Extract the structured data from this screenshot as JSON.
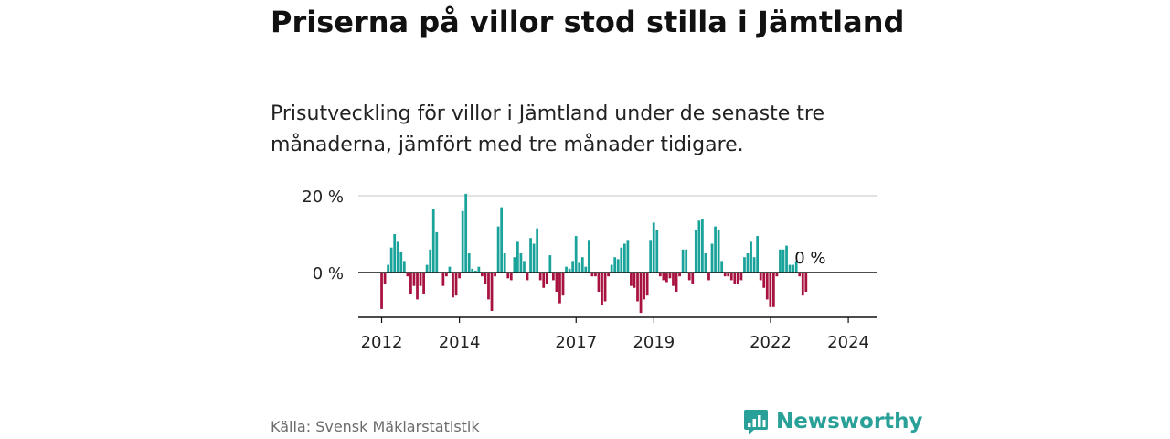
{
  "title": "Priserna på villor stod stilla i Jämtland",
  "subtitle": "Prisutveckling för villor i Jämtland under de senaste tre månaderna, jämfört med tre månader tidigare.",
  "source": "Källa: Svensk Mäklarstatistik",
  "brand": {
    "name": "Newsworthy",
    "icon": "newsworthy-logo-icon"
  },
  "colors": {
    "positive": "#1aa39a",
    "negative": "#a8123f",
    "brand": "#2aa198",
    "grid": "#d9d9d9",
    "axis": "#111111"
  },
  "chart_data": {
    "type": "bar",
    "title": "Priserna på villor stod stilla i Jämtland",
    "xlabel": "",
    "ylabel": "",
    "ylim": [
      -12,
      20
    ],
    "x_range": [
      2011.4,
      2024.75
    ],
    "yticks": [
      {
        "value": 20,
        "label": "20 %"
      },
      {
        "value": 0,
        "label": "0 %"
      }
    ],
    "xticks": [
      {
        "value": 2012,
        "label": "2012"
      },
      {
        "value": 2014,
        "label": "2014"
      },
      {
        "value": 2017,
        "label": "2017"
      },
      {
        "value": 2019,
        "label": "2019"
      },
      {
        "value": 2022,
        "label": "2022"
      },
      {
        "value": 2024,
        "label": "2024"
      }
    ],
    "last_label": "0 %",
    "series": [
      {
        "name": "Prisutveckling",
        "start": 2012,
        "step": 0.0833,
        "values": [
          -9.5,
          -3,
          2,
          6.5,
          10,
          8,
          5.5,
          3,
          -1,
          -5.5,
          -3.5,
          -7,
          -3.5,
          -5.5,
          2,
          6,
          16.5,
          10.5,
          0,
          -3.5,
          -1,
          1.5,
          -6.5,
          -6,
          -1.5,
          16,
          20.5,
          5,
          1,
          0.5,
          1.5,
          -1,
          -3,
          -7,
          -10,
          -1,
          12,
          17,
          5,
          -1.5,
          -2,
          4,
          8,
          5,
          3,
          -2,
          9,
          7.5,
          11.5,
          -2,
          -4,
          -3,
          4.5,
          -2,
          -5,
          -8,
          -6,
          1.5,
          1,
          3,
          9.5,
          2.5,
          4,
          1.5,
          8.5,
          -1,
          -1,
          -5,
          -8.5,
          -7.5,
          -1,
          2,
          4,
          3.5,
          6.5,
          7.5,
          8.5,
          -3.5,
          -4,
          -7.5,
          -10.5,
          -7,
          -6,
          8.5,
          13,
          11,
          -1,
          -2,
          -2.5,
          -1.5,
          -3.5,
          -5,
          -1,
          6,
          6,
          -2,
          -3,
          11,
          13.5,
          14,
          5,
          -2,
          7.5,
          12,
          11,
          3,
          -1,
          -1,
          -2,
          -3,
          -3,
          -2,
          4,
          5,
          8,
          4,
          9.5,
          -2,
          -4,
          -7,
          -9,
          -9,
          -1,
          6,
          6,
          7,
          2,
          2,
          3,
          -1,
          -6,
          -5,
          0
        ]
      }
    ]
  }
}
